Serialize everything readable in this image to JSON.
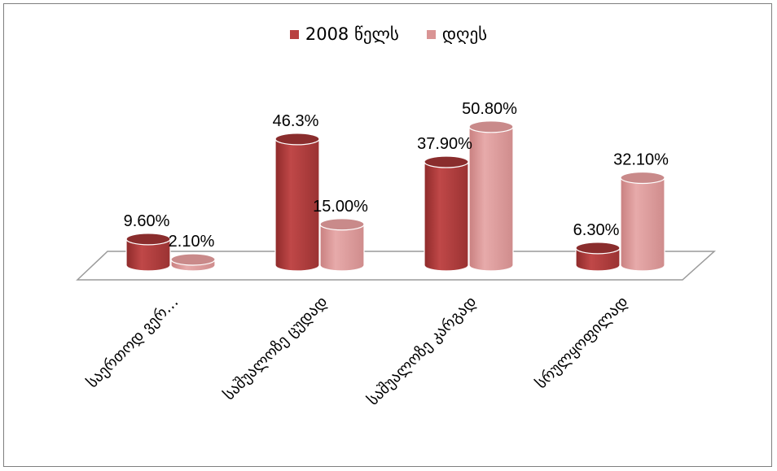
{
  "chart_data": {
    "type": "bar",
    "style": "3d-cylinder",
    "categories": [
      "საერთოდ ვერ…",
      "საშუალოზე ცუდად",
      "საშუალოზე კარგად",
      "სრულყოფილად"
    ],
    "series": [
      {
        "name": "2008 წელს",
        "color": "#b84040",
        "values": [
          9.6,
          46.3,
          37.9,
          6.3
        ],
        "labels": [
          "9.60%",
          "46.3%",
          "37.90%",
          "6.30%"
        ]
      },
      {
        "name": "დღეს",
        "color": "#d99494",
        "values": [
          2.1,
          15.0,
          50.8,
          32.1
        ],
        "labels": [
          "2.10%",
          "15.00%",
          "50.80%",
          "32.10%"
        ]
      }
    ],
    "ylim": [
      0,
      60
    ],
    "grid": false,
    "legend_position": "top"
  }
}
